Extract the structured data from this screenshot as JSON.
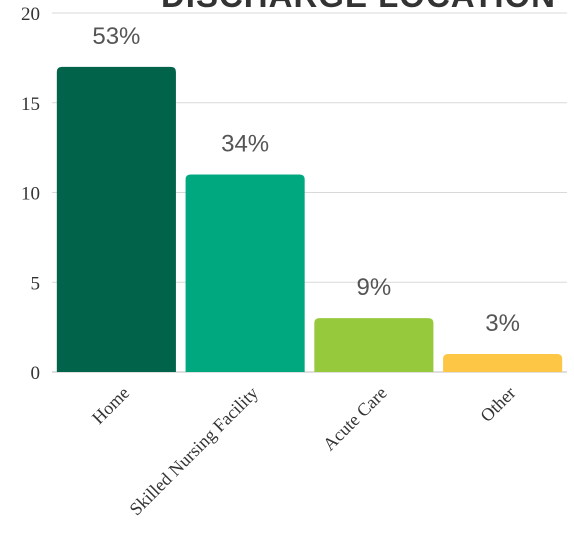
{
  "chart_data": {
    "type": "bar",
    "title": "DISCHARGE LOCATION",
    "categories": [
      "Home",
      "Skilled Nursing Facility",
      "Acute Care",
      "Other"
    ],
    "values": [
      17,
      11,
      3,
      1
    ],
    "data_labels": [
      "53%",
      "34%",
      "9%",
      "3%"
    ],
    "colors": [
      "#00634a",
      "#00a880",
      "#97c93d",
      "#fdc745"
    ],
    "ylim": [
      0,
      20
    ],
    "yticks": [
      0,
      5,
      10,
      15,
      20
    ],
    "ytick_labels": [
      "0",
      "5",
      "10",
      "15",
      "20"
    ],
    "grid": true,
    "legend": "none",
    "xlabel": "",
    "ylabel": ""
  }
}
